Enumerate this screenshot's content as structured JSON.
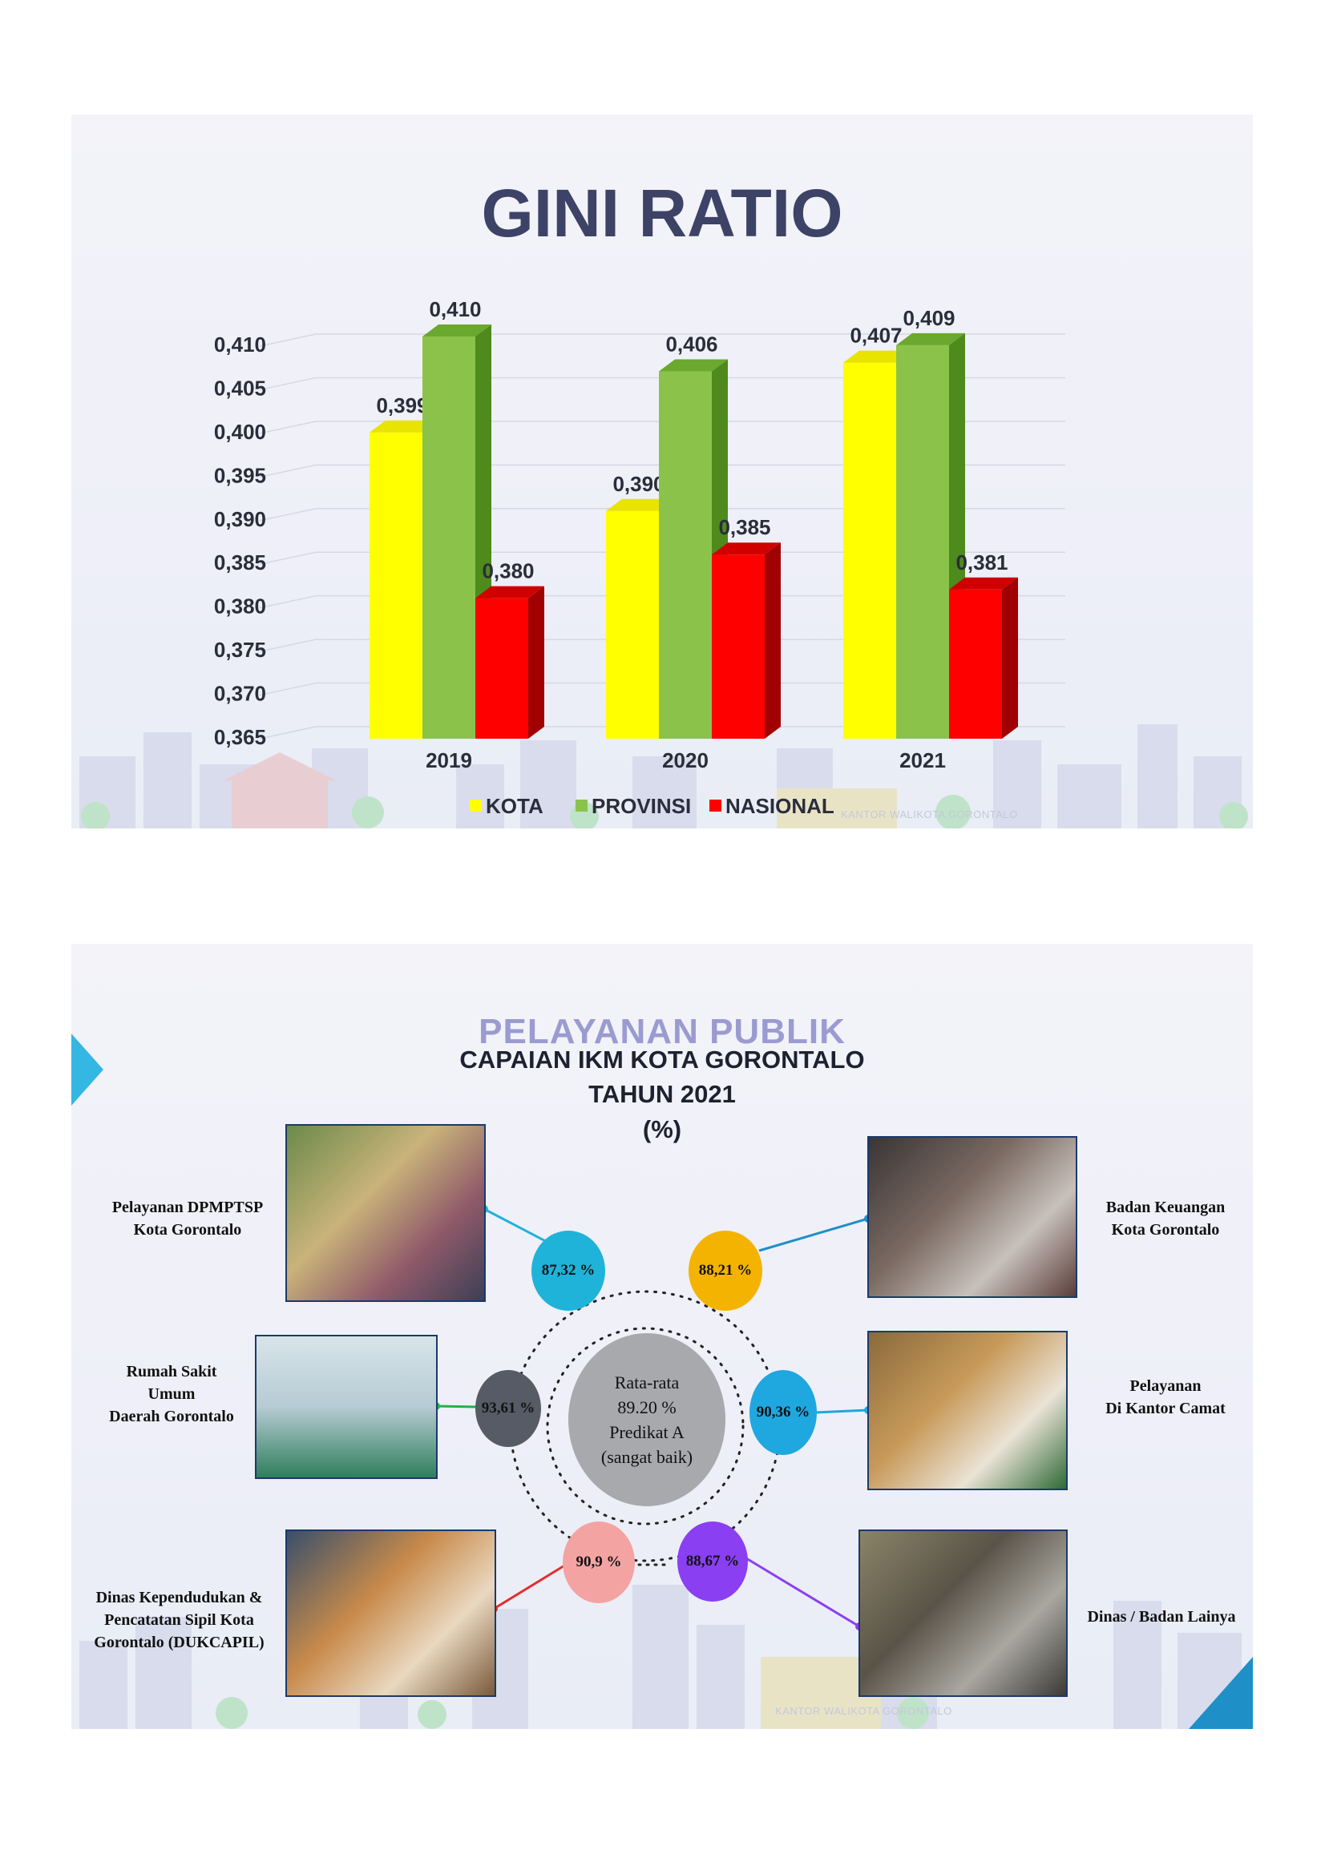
{
  "slide1": {
    "watermark": "KANTOR WALIKOTA GORONTALO"
  },
  "chart_data": {
    "type": "bar",
    "title": "GINI RATIO",
    "categories": [
      "2019",
      "2020",
      "2021"
    ],
    "series": [
      {
        "name": "KOTA",
        "color": "#ffff00",
        "side": "#b8b400",
        "top": "#e8e400",
        "values": [
          0.399,
          0.39,
          0.407
        ],
        "labels": [
          "0,399",
          "0,390",
          "0,407"
        ]
      },
      {
        "name": "PROVINSI",
        "color": "#8bc34a",
        "side": "#4e8a1c",
        "top": "#6aa82e",
        "values": [
          0.41,
          0.406,
          0.409
        ],
        "labels": [
          "0,410",
          "0,406",
          "0,409"
        ]
      },
      {
        "name": "NASIONAL",
        "color": "#ff0000",
        "side": "#a00000",
        "top": "#d10000",
        "values": [
          0.38,
          0.385,
          0.381
        ],
        "labels": [
          "0,380",
          "0,385",
          "0,381"
        ]
      }
    ],
    "ylim": [
      0.365,
      0.41
    ],
    "yticks": [
      "0,365",
      "0,370",
      "0,375",
      "0,380",
      "0,385",
      "0,390",
      "0,395",
      "0,400",
      "0,405",
      "0,410"
    ],
    "grid": true,
    "legend_position": "bottom"
  },
  "slide2": {
    "heading": "PELAYANAN PUBLIK",
    "title_line1": "CAPAIAN IKM KOTA GORONTALO",
    "title_line2": "TAHUN 2021",
    "title_line3": "(%)",
    "center": {
      "line1": "Rata-rata",
      "line2": "89.20 %",
      "line3": "Predikat A",
      "line4": "(sangat baik)"
    },
    "units": [
      {
        "label_line1": "Pelayanan DPMPTSP",
        "label_line2": "Kota Gorontalo",
        "label_line3": "",
        "value": "87,32 %",
        "color": "#1fb3d9"
      },
      {
        "label_line1": "Badan Keuangan",
        "label_line2": "Kota Gorontalo",
        "label_line3": "",
        "value": "88,21 %",
        "color": "#f5b301"
      },
      {
        "label_line1": "Rumah Sakit",
        "label_line2": "Umum",
        "label_line3": "Daerah Gorontalo",
        "value": "93,61 %",
        "color": "#575b66"
      },
      {
        "label_line1": "Pelayanan",
        "label_line2": "Di Kantor Camat",
        "label_line3": "",
        "value": "90,36 %",
        "color": "#1fa7e0"
      },
      {
        "label_line1": "Dinas Kependudukan &",
        "label_line2": "Pencatatan Sipil Kota",
        "label_line3": "Gorontalo (DUKCAPIL)",
        "value": "90,9 %",
        "color": "#f4a3a3"
      },
      {
        "label_line1": "Dinas / Badan Lainya",
        "label_line2": "",
        "label_line3": "",
        "value": "88,67 %",
        "color": "#8a3ff2"
      }
    ],
    "watermark": "KANTOR WALIKOTA GORONTALO"
  }
}
